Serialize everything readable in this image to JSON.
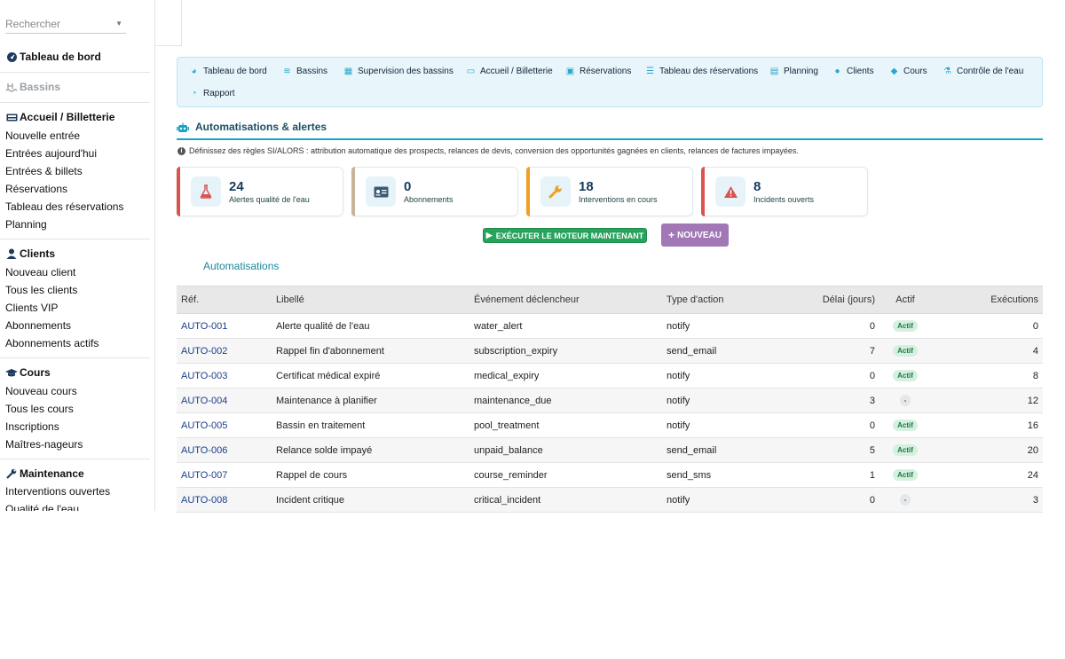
{
  "search": {
    "placeholder": "Rechercher"
  },
  "sidebar": {
    "dashboard": "Tableau de bord",
    "basins": "Bassins",
    "reception": {
      "title": "Accueil / Billetterie",
      "items": [
        "Nouvelle entrée",
        "Entrées aujourd'hui",
        "Entrées & billets",
        "Réservations",
        "Tableau des réservations",
        "Planning"
      ]
    },
    "clients": {
      "title": "Clients",
      "items": [
        "Nouveau client",
        "Tous les clients",
        "Clients VIP",
        "Abonnements",
        "Abonnements actifs"
      ]
    },
    "courses": {
      "title": "Cours",
      "items": [
        "Nouveau cours",
        "Tous les cours",
        "Inscriptions",
        "Maîtres-nageurs"
      ]
    },
    "maintenance": {
      "title": "Maintenance",
      "items": [
        "Interventions ouvertes",
        "Qualité de l'eau"
      ]
    }
  },
  "nav": [
    "Tableau de bord",
    "Bassins",
    "Supervision des bassins",
    "Accueil / Billetterie",
    "Réservations",
    "Tableau des réservations",
    "Planning",
    "Clients",
    "Cours",
    "Contrôle de l'eau",
    "Rapport"
  ],
  "page": {
    "title": "Automatisations & alertes",
    "info": "Définissez des règles SI/ALORS : attribution automatique des prospects, relances de devis, conversion des opportunités gagnées en clients, relances de factures impayées."
  },
  "kpis": [
    {
      "value": "24",
      "label": "Alertes qualité de l'eau",
      "color": "#d9534f"
    },
    {
      "value": "0",
      "label": "Abonnements",
      "color": "#c8b49a"
    },
    {
      "value": "18",
      "label": "Interventions en cours",
      "color": "#f0a020"
    },
    {
      "value": "8",
      "label": "Incidents ouverts",
      "color": "#d9534f"
    }
  ],
  "actions": {
    "run": "EXÉCUTER LE MOTEUR MAINTENANT",
    "new": "NOUVEAU"
  },
  "table": {
    "title": "Automatisations",
    "headers": [
      "Réf.",
      "Libellé",
      "Événement déclencheur",
      "Type d'action",
      "Délai (jours)",
      "Actif",
      "Exécutions"
    ],
    "rows": [
      {
        "ref": "AUTO-001",
        "label": "Alerte qualité de l'eau",
        "event": "water_alert",
        "action": "notify",
        "delay": "0",
        "active": "Actif",
        "runs": "0"
      },
      {
        "ref": "AUTO-002",
        "label": "Rappel fin d'abonnement",
        "event": "subscription_expiry",
        "action": "send_email",
        "delay": "7",
        "active": "Actif",
        "runs": "4"
      },
      {
        "ref": "AUTO-003",
        "label": "Certificat médical expiré",
        "event": "medical_expiry",
        "action": "notify",
        "delay": "0",
        "active": "Actif",
        "runs": "8"
      },
      {
        "ref": "AUTO-004",
        "label": "Maintenance à planifier",
        "event": "maintenance_due",
        "action": "notify",
        "delay": "3",
        "active": "-",
        "runs": "12"
      },
      {
        "ref": "AUTO-005",
        "label": "Bassin en traitement",
        "event": "pool_treatment",
        "action": "notify",
        "delay": "0",
        "active": "Actif",
        "runs": "16"
      },
      {
        "ref": "AUTO-006",
        "label": "Relance solde impayé",
        "event": "unpaid_balance",
        "action": "send_email",
        "delay": "5",
        "active": "Actif",
        "runs": "20"
      },
      {
        "ref": "AUTO-007",
        "label": "Rappel de cours",
        "event": "course_reminder",
        "action": "send_sms",
        "delay": "1",
        "active": "Actif",
        "runs": "24"
      },
      {
        "ref": "AUTO-008",
        "label": "Incident critique",
        "event": "critical_incident",
        "action": "notify",
        "delay": "0",
        "active": "-",
        "runs": "3"
      }
    ]
  }
}
